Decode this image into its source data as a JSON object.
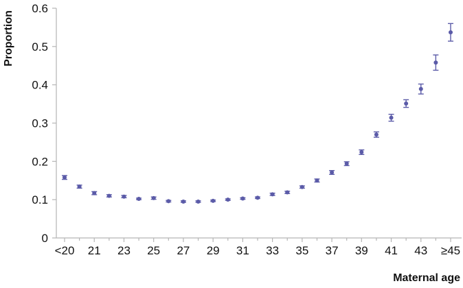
{
  "chart_data": {
    "type": "scatter",
    "xlabel": "Maternal age",
    "ylabel": "Proportion",
    "ylim": [
      0,
      0.6
    ],
    "yticks": [
      "0",
      "0.1",
      "0.2",
      "0.3",
      "0.4",
      "0.5",
      "0.6"
    ],
    "ytick_values": [
      0,
      0.1,
      0.2,
      0.3,
      0.4,
      0.5,
      0.6
    ],
    "categories": [
      "<20",
      "20",
      "21",
      "22",
      "23",
      "24",
      "25",
      "26",
      "27",
      "28",
      "29",
      "30",
      "31",
      "32",
      "33",
      "34",
      "35",
      "36",
      "37",
      "38",
      "39",
      "40",
      "41",
      "42",
      "43",
      "44",
      "≥45"
    ],
    "xtick_labels": [
      "<20",
      "",
      "21",
      "",
      "23",
      "",
      "25",
      "",
      "27",
      "",
      "29",
      "",
      "31",
      "",
      "33",
      "",
      "35",
      "",
      "37",
      "",
      "39",
      "",
      "41",
      "",
      "43",
      "",
      "≥45"
    ],
    "series": [
      {
        "values": [
          0.158,
          0.134,
          0.117,
          0.11,
          0.108,
          0.102,
          0.104,
          0.096,
          0.095,
          0.095,
          0.097,
          0.1,
          0.103,
          0.105,
          0.114,
          0.119,
          0.133,
          0.15,
          0.171,
          0.194,
          0.224,
          0.27,
          0.314,
          0.351,
          0.389,
          0.458,
          0.537
        ],
        "err_low": [
          0.153,
          0.13,
          0.113,
          0.107,
          0.105,
          0.1,
          0.101,
          0.094,
          0.093,
          0.093,
          0.095,
          0.098,
          0.101,
          0.103,
          0.111,
          0.116,
          0.13,
          0.146,
          0.166,
          0.189,
          0.218,
          0.263,
          0.305,
          0.341,
          0.376,
          0.438,
          0.514
        ],
        "err_high": [
          0.163,
          0.138,
          0.121,
          0.113,
          0.111,
          0.104,
          0.107,
          0.098,
          0.097,
          0.097,
          0.099,
          0.102,
          0.105,
          0.107,
          0.117,
          0.122,
          0.136,
          0.154,
          0.176,
          0.199,
          0.23,
          0.277,
          0.323,
          0.361,
          0.402,
          0.478,
          0.56
        ]
      }
    ],
    "grid": false,
    "colors": {
      "marker": "#5b5ba8",
      "axis": "#b5b5b5"
    }
  }
}
